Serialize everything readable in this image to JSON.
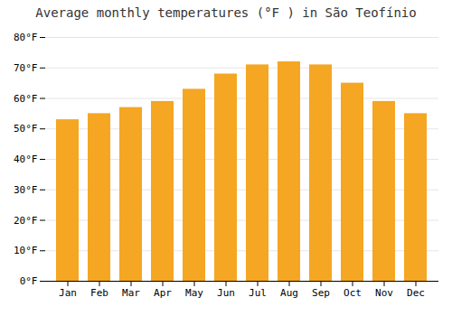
{
  "chart_data": {
    "type": "bar",
    "title": "Average monthly temperatures (°F ) in São Teofínio",
    "categories": [
      "Jan",
      "Feb",
      "Mar",
      "Apr",
      "May",
      "Jun",
      "Jul",
      "Aug",
      "Sep",
      "Oct",
      "Nov",
      "Dec"
    ],
    "values": [
      53,
      55,
      57,
      59,
      63,
      68,
      71,
      72,
      71,
      65,
      59,
      55
    ],
    "color": "#F5A623",
    "ylim": [
      0,
      80
    ],
    "yticks": [
      {
        "value": 0,
        "label": "0°F"
      },
      {
        "value": 10,
        "label": "10°F"
      },
      {
        "value": 20,
        "label": "20°F"
      },
      {
        "value": 30,
        "label": "30°F"
      },
      {
        "value": 40,
        "label": "40°F"
      },
      {
        "value": 50,
        "label": "50°F"
      },
      {
        "value": 60,
        "label": "60°F"
      },
      {
        "value": 70,
        "label": "70°F"
      },
      {
        "value": 80,
        "label": "80°F"
      }
    ],
    "grid": true
  }
}
